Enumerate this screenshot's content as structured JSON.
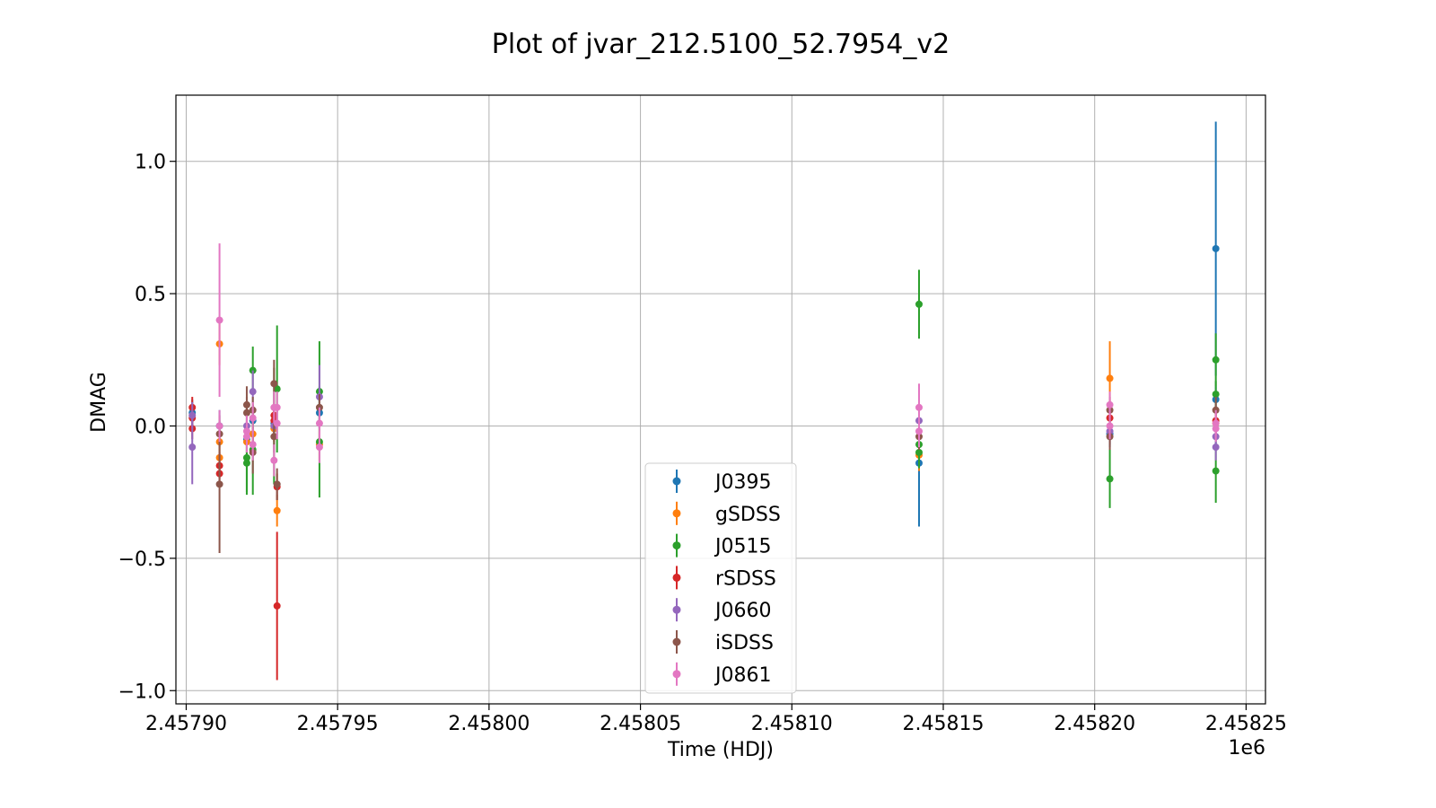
{
  "chart_data": {
    "type": "scatter",
    "title": "Plot of jvar_212.5100_52.7954_v2",
    "xlabel": "Time (HDJ)",
    "ylabel": "DMAG",
    "x_offset_label": "1e6",
    "xlim": [
      2457896.6,
      2458256.4
    ],
    "ylim": [
      -1.05,
      1.25
    ],
    "x_ticks": [
      2457900,
      2457950,
      2458000,
      2458050,
      2458100,
      2458150,
      2458200,
      2458250
    ],
    "x_tick_labels": [
      "2.45790",
      "2.45795",
      "2.45800",
      "2.45805",
      "2.45810",
      "2.45815",
      "2.45820",
      "2.45825"
    ],
    "y_ticks": [
      -1.0,
      -0.5,
      0.0,
      0.5,
      1.0
    ],
    "y_tick_labels": [
      "−1.0",
      "−0.5",
      "0.0",
      "0.5",
      "1.0"
    ],
    "grid": true,
    "legend_position": "lower-center",
    "error_bars": true,
    "series": [
      {
        "name": "J0395",
        "color": "#1f77b4",
        "points": [
          {
            "x": 2457902,
            "y": 0.05,
            "err": 0.05
          },
          {
            "x": 2457911,
            "y": 0.0,
            "err": 0.06
          },
          {
            "x": 2457920,
            "y": -0.05,
            "err": 0.06
          },
          {
            "x": 2457922,
            "y": 0.02,
            "err": 0.06
          },
          {
            "x": 2457929,
            "y": 0.01,
            "err": 0.06
          },
          {
            "x": 2457944,
            "y": 0.05,
            "err": 0.06
          },
          {
            "x": 2458142,
            "y": -0.14,
            "err": 0.24
          },
          {
            "x": 2458205,
            "y": -0.03,
            "err": 0.05
          },
          {
            "x": 2458240,
            "y": 0.67,
            "err": 0.48
          },
          {
            "x": 2458240,
            "y": 0.1,
            "err": 0.05
          }
        ]
      },
      {
        "name": "gSDSS",
        "color": "#ff7f0e",
        "points": [
          {
            "x": 2457911,
            "y": 0.31,
            "err": 0.08
          },
          {
            "x": 2457911,
            "y": -0.06,
            "err": 0.06
          },
          {
            "x": 2457911,
            "y": -0.12,
            "err": 0.06
          },
          {
            "x": 2457920,
            "y": -0.06,
            "err": 0.06
          },
          {
            "x": 2457922,
            "y": -0.03,
            "err": 0.05
          },
          {
            "x": 2457929,
            "y": -0.01,
            "err": 0.05
          },
          {
            "x": 2457930,
            "y": -0.32,
            "err": 0.06
          },
          {
            "x": 2457944,
            "y": -0.07,
            "err": 0.06
          },
          {
            "x": 2458142,
            "y": -0.11,
            "err": 0.06
          },
          {
            "x": 2458205,
            "y": 0.18,
            "err": 0.14
          },
          {
            "x": 2458240,
            "y": 0.01,
            "err": 0.05
          }
        ]
      },
      {
        "name": "J0515",
        "color": "#2ca02c",
        "points": [
          {
            "x": 2457920,
            "y": -0.12,
            "err": 0.13
          },
          {
            "x": 2457920,
            "y": -0.14,
            "err": 0.12
          },
          {
            "x": 2457922,
            "y": 0.21,
            "err": 0.09
          },
          {
            "x": 2457922,
            "y": -0.09,
            "err": 0.17
          },
          {
            "x": 2457929,
            "y": 0.0,
            "err": 0.22
          },
          {
            "x": 2457930,
            "y": 0.14,
            "err": 0.24
          },
          {
            "x": 2457944,
            "y": 0.13,
            "err": 0.19
          },
          {
            "x": 2457944,
            "y": -0.06,
            "err": 0.21
          },
          {
            "x": 2458142,
            "y": 0.46,
            "err": 0.13
          },
          {
            "x": 2458142,
            "y": -0.07,
            "err": 0.06
          },
          {
            "x": 2458142,
            "y": -0.1,
            "err": 0.06
          },
          {
            "x": 2458205,
            "y": -0.2,
            "err": 0.11
          },
          {
            "x": 2458240,
            "y": 0.25,
            "err": 0.1
          },
          {
            "x": 2458240,
            "y": 0.12,
            "err": 0.05
          },
          {
            "x": 2458240,
            "y": -0.17,
            "err": 0.12
          }
        ]
      },
      {
        "name": "rSDSS",
        "color": "#d62728",
        "points": [
          {
            "x": 2457902,
            "y": 0.07,
            "err": 0.04
          },
          {
            "x": 2457902,
            "y": 0.03,
            "err": 0.04
          },
          {
            "x": 2457902,
            "y": -0.01,
            "err": 0.04
          },
          {
            "x": 2457911,
            "y": -0.15,
            "err": 0.05
          },
          {
            "x": 2457911,
            "y": -0.18,
            "err": 0.05
          },
          {
            "x": 2457929,
            "y": 0.04,
            "err": 0.04
          },
          {
            "x": 2457929,
            "y": 0.02,
            "err": 0.04
          },
          {
            "x": 2457930,
            "y": -0.23,
            "err": 0.05
          },
          {
            "x": 2457930,
            "y": -0.68,
            "err": 0.28
          },
          {
            "x": 2458205,
            "y": 0.03,
            "err": 0.04
          },
          {
            "x": 2458240,
            "y": 0.02,
            "err": 0.04
          }
        ]
      },
      {
        "name": "J0660",
        "color": "#9467bd",
        "points": [
          {
            "x": 2457902,
            "y": -0.08,
            "err": 0.14
          },
          {
            "x": 2457902,
            "y": 0.04,
            "err": 0.05
          },
          {
            "x": 2457920,
            "y": 0.0,
            "err": 0.05
          },
          {
            "x": 2457922,
            "y": 0.13,
            "err": 0.08
          },
          {
            "x": 2457929,
            "y": 0.0,
            "err": 0.05
          },
          {
            "x": 2457944,
            "y": 0.11,
            "err": 0.12
          },
          {
            "x": 2458142,
            "y": 0.02,
            "err": 0.05
          },
          {
            "x": 2458205,
            "y": -0.02,
            "err": 0.05
          },
          {
            "x": 2458240,
            "y": -0.08,
            "err": 0.05
          },
          {
            "x": 2458240,
            "y": -0.04,
            "err": 0.05
          }
        ]
      },
      {
        "name": "iSDSS",
        "color": "#8c564b",
        "points": [
          {
            "x": 2457911,
            "y": -0.03,
            "err": 0.05
          },
          {
            "x": 2457911,
            "y": -0.22,
            "err": 0.26
          },
          {
            "x": 2457920,
            "y": 0.08,
            "err": 0.07
          },
          {
            "x": 2457920,
            "y": 0.05,
            "err": 0.06
          },
          {
            "x": 2457922,
            "y": 0.06,
            "err": 0.05
          },
          {
            "x": 2457922,
            "y": -0.1,
            "err": 0.08
          },
          {
            "x": 2457929,
            "y": 0.16,
            "err": 0.09
          },
          {
            "x": 2457929,
            "y": -0.04,
            "err": 0.06
          },
          {
            "x": 2457930,
            "y": -0.22,
            "err": 0.06
          },
          {
            "x": 2457944,
            "y": 0.07,
            "err": 0.05
          },
          {
            "x": 2458142,
            "y": -0.04,
            "err": 0.05
          },
          {
            "x": 2458205,
            "y": 0.06,
            "err": 0.05
          },
          {
            "x": 2458205,
            "y": -0.04,
            "err": 0.05
          },
          {
            "x": 2458240,
            "y": 0.06,
            "err": 0.05
          }
        ]
      },
      {
        "name": "J0861",
        "color": "#e377c2",
        "points": [
          {
            "x": 2457911,
            "y": 0.4,
            "err": 0.29
          },
          {
            "x": 2457911,
            "y": 0.0,
            "err": 0.06
          },
          {
            "x": 2457920,
            "y": -0.02,
            "err": 0.06
          },
          {
            "x": 2457920,
            "y": -0.04,
            "err": 0.06
          },
          {
            "x": 2457922,
            "y": 0.03,
            "err": 0.06
          },
          {
            "x": 2457922,
            "y": -0.07,
            "err": 0.06
          },
          {
            "x": 2457929,
            "y": 0.07,
            "err": 0.06
          },
          {
            "x": 2457929,
            "y": -0.13,
            "err": 0.06
          },
          {
            "x": 2457930,
            "y": 0.07,
            "err": 0.06
          },
          {
            "x": 2457930,
            "y": 0.01,
            "err": 0.06
          },
          {
            "x": 2457944,
            "y": 0.01,
            "err": 0.06
          },
          {
            "x": 2457944,
            "y": -0.08,
            "err": 0.06
          },
          {
            "x": 2458142,
            "y": 0.07,
            "err": 0.09
          },
          {
            "x": 2458142,
            "y": -0.02,
            "err": 0.06
          },
          {
            "x": 2458205,
            "y": 0.08,
            "err": 0.05
          },
          {
            "x": 2458205,
            "y": 0.0,
            "err": 0.05
          },
          {
            "x": 2458240,
            "y": 0.01,
            "err": 0.05
          },
          {
            "x": 2458240,
            "y": -0.01,
            "err": 0.05
          }
        ]
      }
    ]
  }
}
